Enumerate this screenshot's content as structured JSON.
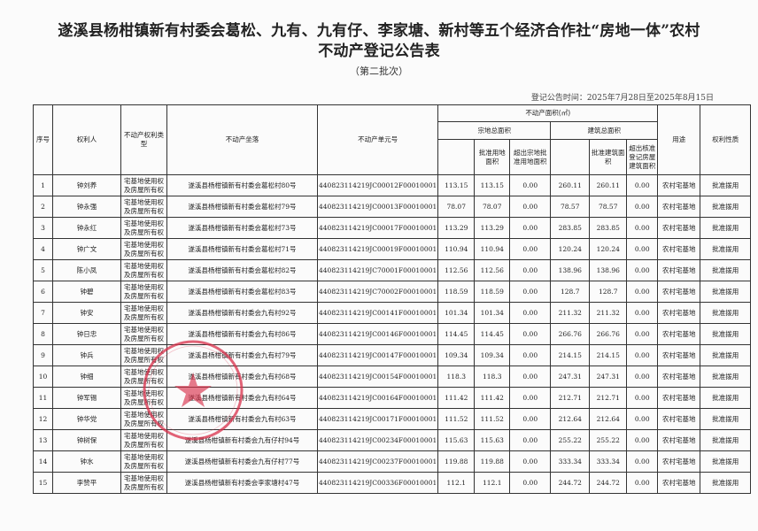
{
  "document": {
    "title_line1": "遂溪县杨柑镇新有村委会葛松、九有、九有仔、李家塘、新村等五个经济合作社“房地一体”农村",
    "title_line2": "不动产登记公告表",
    "subtitle": "（第二批次）",
    "period": "登记公告时间：2025年7月28日至2025年8月15日",
    "stamp_color": "#d9304a"
  },
  "table": {
    "headers": {
      "seq": "序号",
      "owner": "权利人",
      "right_type": "不动产权利类型",
      "location": "不动产坐落",
      "unit_no": "不动产单元号",
      "area_group": "不动产面积(㎡)",
      "land_total": "宗地总面积",
      "land_approved": "批准用地面积",
      "land_excess": "超出宗地批准用地面积",
      "building_total": "建筑总面积",
      "building_approved": "批准建筑面积",
      "building_excess": "超出核准登记房屋建筑面积",
      "usage": "用途",
      "nature": "权利性质"
    },
    "rows": [
      {
        "seq": "1",
        "owner": "钟刘养",
        "type": "宅基地使用权及房屋所有权",
        "location": "遂溪县杨柑镇新有村委会葛松村80号",
        "unit": "440823114219JC00012F00010001",
        "land": "113.15",
        "land_ok": "113.15",
        "land_ex": "0.00",
        "bld": "260.11",
        "bld_ok": "260.11",
        "bld_ex": "0.00",
        "usage": "农村宅基地",
        "nature": "批准拨用"
      },
      {
        "seq": "2",
        "owner": "钟永强",
        "type": "宅基地使用权及房屋所有权",
        "location": "遂溪县杨柑镇新有村委会葛松村79号",
        "unit": "440823114219JC00013F00010001",
        "land": "78.07",
        "land_ok": "78.07",
        "land_ex": "0.00",
        "bld": "78.57",
        "bld_ok": "78.57",
        "bld_ex": "0.00",
        "usage": "农村宅基地",
        "nature": "批准拨用"
      },
      {
        "seq": "3",
        "owner": "钟永红",
        "type": "宅基地使用权及房屋所有权",
        "location": "遂溪县杨柑镇新有村委会葛松村73号",
        "unit": "440823114219JC00017F00010001",
        "land": "113.29",
        "land_ok": "113.29",
        "land_ex": "0.00",
        "bld": "283.85",
        "bld_ok": "283.85",
        "bld_ex": "0.00",
        "usage": "农村宅基地",
        "nature": "批准拨用"
      },
      {
        "seq": "4",
        "owner": "钟广文",
        "type": "宅基地使用权及房屋所有权",
        "location": "遂溪县杨柑镇新有村委会葛松村71号",
        "unit": "440823114219JC00019F00010001",
        "land": "110.94",
        "land_ok": "110.94",
        "land_ex": "0.00",
        "bld": "120.24",
        "bld_ok": "120.24",
        "bld_ex": "0.00",
        "usage": "农村宅基地",
        "nature": "批准拨用"
      },
      {
        "seq": "5",
        "owner": "陈小凤",
        "type": "宅基地使用权及房屋所有权",
        "location": "遂溪县杨柑镇新有村委会葛松村82号",
        "unit": "440823114219JC70001F00010001",
        "land": "112.56",
        "land_ok": "112.56",
        "land_ex": "0.00",
        "bld": "138.96",
        "bld_ok": "138.96",
        "bld_ex": "0.00",
        "usage": "农村宅基地",
        "nature": "批准拨用"
      },
      {
        "seq": "6",
        "owner": "钟碧",
        "type": "宅基地使用权及房屋所有权",
        "location": "遂溪县杨柑镇新有村委会葛松村83号",
        "unit": "440823114219JC70002F00010001",
        "land": "118.59",
        "land_ok": "118.59",
        "land_ex": "0.00",
        "bld": "128.7",
        "bld_ok": "128.7",
        "bld_ex": "0.00",
        "usage": "农村宅基地",
        "nature": "批准拨用"
      },
      {
        "seq": "7",
        "owner": "钟安",
        "type": "宅基地使用权及房屋所有权",
        "location": "遂溪县杨柑镇新有村委会九有村92号",
        "unit": "440823114219JC00141F00010001",
        "land": "101.34",
        "land_ok": "101.34",
        "land_ex": "0.00",
        "bld": "211.32",
        "bld_ok": "211.32",
        "bld_ex": "0.00",
        "usage": "农村宅基地",
        "nature": "批准拨用"
      },
      {
        "seq": "8",
        "owner": "钟日忠",
        "type": "宅基地使用权及房屋所有权",
        "location": "遂溪县杨柑镇新有村委会九有村86号",
        "unit": "440823114219JC00146F00010001",
        "land": "114.45",
        "land_ok": "114.45",
        "land_ex": "0.00",
        "bld": "266.76",
        "bld_ok": "266.76",
        "bld_ex": "0.00",
        "usage": "农村宅基地",
        "nature": "批准拨用"
      },
      {
        "seq": "9",
        "owner": "钟兵",
        "type": "宅基地使用权及房屋所有权",
        "location": "遂溪县杨柑镇新有村委会九有村79号",
        "unit": "440823114219JC00147F00010001",
        "land": "109.34",
        "land_ok": "109.34",
        "land_ex": "0.00",
        "bld": "214.15",
        "bld_ok": "214.15",
        "bld_ex": "0.00",
        "usage": "农村宅基地",
        "nature": "批准拨用"
      },
      {
        "seq": "10",
        "owner": "钟细",
        "type": "宅基地使用权及房屋所有权",
        "location": "遂溪县杨柑镇新有村委会九有村68号",
        "unit": "440823114219JC00154F00010001",
        "land": "118.3",
        "land_ok": "118.3",
        "land_ex": "0.00",
        "bld": "247.31",
        "bld_ok": "247.31",
        "bld_ex": "0.00",
        "usage": "农村宅基地",
        "nature": "批准拨用"
      },
      {
        "seq": "11",
        "owner": "钟军锡",
        "type": "宅基地使用权及房屋所有权",
        "location": "遂溪县杨柑镇新有村委会九有村64号",
        "unit": "440823114219JC00164F00010001",
        "land": "111.42",
        "land_ok": "111.42",
        "land_ex": "0.00",
        "bld": "212.71",
        "bld_ok": "212.71",
        "bld_ex": "0.00",
        "usage": "农村宅基地",
        "nature": "批准拨用"
      },
      {
        "seq": "12",
        "owner": "钟华党",
        "type": "宅基地使用权及房屋所有权",
        "location": "遂溪县杨柑镇新有村委会九有村63号",
        "unit": "440823114219JC00171F00010001",
        "land": "111.52",
        "land_ok": "111.52",
        "land_ex": "0.00",
        "bld": "212.64",
        "bld_ok": "212.64",
        "bld_ex": "0.00",
        "usage": "农村宅基地",
        "nature": "批准拨用"
      },
      {
        "seq": "13",
        "owner": "钟树保",
        "type": "宅基地使用权及房屋所有权",
        "location": "遂溪县杨柑镇新有村委会九有仔村94号",
        "unit": "440823114219JC00234F00010001",
        "land": "115.63",
        "land_ok": "115.63",
        "land_ex": "0.00",
        "bld": "255.22",
        "bld_ok": "255.22",
        "bld_ex": "0.00",
        "usage": "农村宅基地",
        "nature": "批准拨用"
      },
      {
        "seq": "14",
        "owner": "钟水",
        "type": "宅基地使用权及房屋所有权",
        "location": "遂溪县杨柑镇新有村委会九有仔村77号",
        "unit": "440823114219JC00237F00010001",
        "land": "119.88",
        "land_ok": "119.88",
        "land_ex": "0.00",
        "bld": "333.34",
        "bld_ok": "333.34",
        "bld_ex": "0.00",
        "usage": "农村宅基地",
        "nature": "批准拨用"
      },
      {
        "seq": "15",
        "owner": "李赞平",
        "type": "宅基地使用权及房屋所有权",
        "location": "遂溪县杨柑镇新有村委会李家塘村47号",
        "unit": "440823114219JC00336F00010001",
        "land": "112.1",
        "land_ok": "112.1",
        "land_ex": "0.00",
        "bld": "244.72",
        "bld_ok": "244.72",
        "bld_ex": "0.00",
        "usage": "农村宅基地",
        "nature": "批准拨用"
      }
    ]
  }
}
